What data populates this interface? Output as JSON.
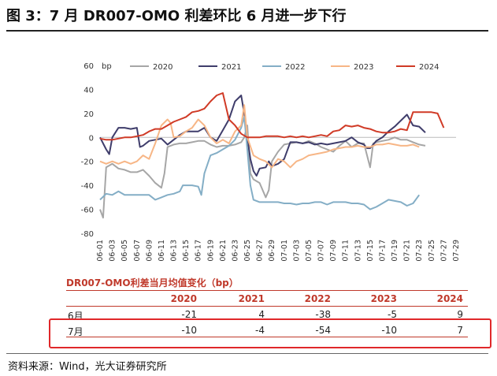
{
  "figure_title": "图 3：7 月 DR007-OMO 利差环比 6 月进一步下行",
  "source": "资料来源：Wind，光大证券研究所",
  "chart_data": {
    "type": "line",
    "title": "",
    "unit_label": "bp",
    "ylim": [
      -80,
      60
    ],
    "yticks": [
      60,
      40,
      20,
      0,
      -20,
      -40,
      -60,
      -80
    ],
    "ytick_labels": [
      "60",
      "40",
      "20",
      "0",
      "-20",
      "-40",
      "-60",
      "-80"
    ],
    "xticks": [
      "06-01",
      "06-03",
      "06-05",
      "06-07",
      "06-09",
      "06-11",
      "06-13",
      "06-15",
      "06-17",
      "06-19",
      "06-21",
      "06-23",
      "06-25",
      "06-27",
      "06-29",
      "07-01",
      "07-03",
      "07-05",
      "07-07",
      "07-09",
      "07-11",
      "07-13",
      "07-15",
      "07-17",
      "07-19",
      "07-21",
      "07-23",
      "07-25",
      "07-27",
      "07-29"
    ],
    "legend_position": "top",
    "series": [
      {
        "name": "2020",
        "color": "#a6a6a6",
        "points": [
          [
            0,
            -60
          ],
          [
            0.5,
            -67
          ],
          [
            1,
            -25
          ],
          [
            2,
            -22
          ],
          [
            3,
            -26
          ],
          [
            4,
            -27
          ],
          [
            5,
            -29
          ],
          [
            6,
            -29
          ],
          [
            7,
            -27
          ],
          [
            8,
            -32
          ],
          [
            9,
            -38
          ],
          [
            10,
            -42
          ],
          [
            10.5,
            -30
          ],
          [
            11,
            -8
          ],
          [
            12,
            -6
          ],
          [
            13,
            -5
          ],
          [
            14,
            -5
          ],
          [
            15,
            -4
          ],
          [
            16,
            -3
          ],
          [
            17,
            -3
          ],
          [
            18,
            -6
          ],
          [
            19,
            -8
          ],
          [
            20,
            -7
          ],
          [
            21,
            -7
          ],
          [
            22,
            -6
          ],
          [
            23,
            -4
          ],
          [
            23.5,
            0
          ],
          [
            24,
            10
          ],
          [
            24.5,
            -30
          ],
          [
            25,
            -35
          ],
          [
            26,
            -38
          ],
          [
            27,
            -50
          ],
          [
            27.5,
            -44
          ],
          [
            28,
            -20
          ],
          [
            29,
            -12
          ],
          [
            30,
            -6
          ],
          [
            31,
            -5
          ],
          [
            32,
            -4
          ],
          [
            33,
            -5
          ],
          [
            34,
            -3
          ],
          [
            35,
            -5
          ],
          [
            36,
            -8
          ],
          [
            37,
            -10
          ],
          [
            38,
            -12
          ],
          [
            39,
            -7
          ],
          [
            40,
            -3
          ],
          [
            41,
            -8
          ],
          [
            42,
            -5
          ],
          [
            43,
            -5
          ],
          [
            43.5,
            -15
          ],
          [
            44,
            -25
          ],
          [
            44.5,
            -5
          ],
          [
            45,
            -4
          ],
          [
            46,
            -3
          ],
          [
            47,
            -2
          ],
          [
            48,
            0
          ],
          [
            49,
            -2
          ],
          [
            50,
            -2
          ],
          [
            51,
            -4
          ],
          [
            52,
            -6
          ],
          [
            53,
            -7
          ]
        ]
      },
      {
        "name": "2021",
        "color": "#3f3d6b",
        "points": [
          [
            0,
            0
          ],
          [
            1,
            -10
          ],
          [
            1.5,
            -14
          ],
          [
            2,
            0
          ],
          [
            3,
            8
          ],
          [
            4,
            8
          ],
          [
            5,
            7
          ],
          [
            6,
            8
          ],
          [
            6.5,
            -8
          ],
          [
            7,
            -7
          ],
          [
            8,
            -3
          ],
          [
            9,
            -2
          ],
          [
            10,
            -1
          ],
          [
            11,
            -6
          ],
          [
            12,
            -2
          ],
          [
            13,
            2
          ],
          [
            14,
            5
          ],
          [
            15,
            5
          ],
          [
            16,
            5
          ],
          [
            17,
            8
          ],
          [
            18,
            0
          ],
          [
            19,
            -3
          ],
          [
            20,
            6
          ],
          [
            21,
            15
          ],
          [
            22,
            30
          ],
          [
            23,
            35
          ],
          [
            23.5,
            20
          ],
          [
            24,
            0
          ],
          [
            24.5,
            -18
          ],
          [
            25,
            -28
          ],
          [
            25.5,
            -32
          ],
          [
            26,
            -26
          ],
          [
            27,
            -25
          ],
          [
            27.5,
            -20
          ],
          [
            28,
            -24
          ],
          [
            29,
            -22
          ],
          [
            30,
            -18
          ],
          [
            31,
            -4
          ],
          [
            32,
            -4
          ],
          [
            33,
            -5
          ],
          [
            34,
            -4
          ],
          [
            35,
            -6
          ],
          [
            36,
            -5
          ],
          [
            37,
            -6
          ],
          [
            38,
            -5
          ],
          [
            39,
            -4
          ],
          [
            40,
            -3
          ],
          [
            41,
            0
          ],
          [
            42,
            -4
          ],
          [
            43,
            -6
          ],
          [
            43.5,
            -9
          ],
          [
            44,
            -9
          ],
          [
            45,
            -3
          ],
          [
            46,
            0
          ],
          [
            47,
            5
          ],
          [
            48,
            9
          ],
          [
            49,
            14
          ],
          [
            50,
            19
          ],
          [
            51,
            10
          ],
          [
            52,
            9
          ],
          [
            53,
            4
          ]
        ]
      },
      {
        "name": "2022",
        "color": "#84aec6",
        "points": [
          [
            0,
            -52
          ],
          [
            1,
            -47
          ],
          [
            2,
            -48
          ],
          [
            3,
            -45
          ],
          [
            4,
            -48
          ],
          [
            5,
            -48
          ],
          [
            6,
            -48
          ],
          [
            7,
            -48
          ],
          [
            8,
            -48
          ],
          [
            9,
            -52
          ],
          [
            10,
            -50
          ],
          [
            11,
            -48
          ],
          [
            12,
            -47
          ],
          [
            13,
            -45
          ],
          [
            13.5,
            -40
          ],
          [
            14,
            -40
          ],
          [
            15,
            -40
          ],
          [
            16,
            -41
          ],
          [
            16.5,
            -48
          ],
          [
            17,
            -30
          ],
          [
            18,
            -15
          ],
          [
            19,
            -13
          ],
          [
            20,
            -10
          ],
          [
            21,
            -7
          ],
          [
            22,
            -2
          ],
          [
            23,
            8
          ],
          [
            23.5,
            17
          ],
          [
            24,
            -10
          ],
          [
            24.5,
            -40
          ],
          [
            25,
            -52
          ],
          [
            26,
            -54
          ],
          [
            27,
            -54
          ],
          [
            28,
            -54
          ],
          [
            29,
            -54
          ],
          [
            30,
            -55
          ],
          [
            31,
            -55
          ],
          [
            32,
            -56
          ],
          [
            33,
            -55
          ],
          [
            34,
            -55
          ],
          [
            35,
            -54
          ],
          [
            36,
            -54
          ],
          [
            37,
            -56
          ],
          [
            38,
            -54
          ],
          [
            39,
            -54
          ],
          [
            40,
            -54
          ],
          [
            41,
            -55
          ],
          [
            42,
            -55
          ],
          [
            43,
            -56
          ],
          [
            44,
            -60
          ],
          [
            45,
            -58
          ],
          [
            46,
            -55
          ],
          [
            47,
            -52
          ],
          [
            48,
            -53
          ],
          [
            49,
            -54
          ],
          [
            50,
            -57
          ],
          [
            51,
            -55
          ],
          [
            52,
            -48
          ]
        ]
      },
      {
        "name": "2023",
        "color": "#f7b686",
        "points": [
          [
            0,
            -20
          ],
          [
            1,
            -22
          ],
          [
            2,
            -20
          ],
          [
            3,
            -22
          ],
          [
            4,
            -20
          ],
          [
            5,
            -22
          ],
          [
            6,
            -20
          ],
          [
            7,
            -15
          ],
          [
            8,
            -18
          ],
          [
            9,
            -5
          ],
          [
            10,
            10
          ],
          [
            11,
            15
          ],
          [
            11.5,
            12
          ],
          [
            12,
            0
          ],
          [
            13,
            1
          ],
          [
            14,
            5
          ],
          [
            15,
            8
          ],
          [
            16,
            15
          ],
          [
            17,
            10
          ],
          [
            18,
            0
          ],
          [
            19,
            -5
          ],
          [
            20,
            -2
          ],
          [
            21,
            -5
          ],
          [
            22,
            5
          ],
          [
            23,
            10
          ],
          [
            23.5,
            27
          ],
          [
            24,
            0
          ],
          [
            25,
            -15
          ],
          [
            26,
            -18
          ],
          [
            27,
            -20
          ],
          [
            28,
            -25
          ],
          [
            29,
            -18
          ],
          [
            30,
            -20
          ],
          [
            31,
            -25
          ],
          [
            32,
            -20
          ],
          [
            33,
            -18
          ],
          [
            34,
            -15
          ],
          [
            35,
            -14
          ],
          [
            36,
            -13
          ],
          [
            37,
            -12
          ],
          [
            38,
            -10
          ],
          [
            39,
            -9
          ],
          [
            40,
            -8
          ],
          [
            41,
            -8
          ],
          [
            42,
            -7
          ],
          [
            43,
            -8
          ],
          [
            44,
            -8
          ],
          [
            45,
            -6
          ],
          [
            46,
            -6
          ],
          [
            47,
            -5
          ],
          [
            48,
            -6
          ],
          [
            49,
            -7
          ],
          [
            50,
            -7
          ],
          [
            51,
            -6
          ],
          [
            52,
            -8
          ]
        ]
      },
      {
        "name": "2024",
        "color": "#d03a26",
        "points": [
          [
            0,
            -1
          ],
          [
            1,
            -2
          ],
          [
            2,
            -2
          ],
          [
            3,
            -1
          ],
          [
            4,
            0
          ],
          [
            5,
            0
          ],
          [
            6,
            1
          ],
          [
            7,
            2
          ],
          [
            8,
            5
          ],
          [
            9,
            7
          ],
          [
            10,
            7
          ],
          [
            11,
            10
          ],
          [
            12,
            13
          ],
          [
            13,
            15
          ],
          [
            14,
            17
          ],
          [
            15,
            21
          ],
          [
            16,
            22
          ],
          [
            17,
            24
          ],
          [
            18,
            30
          ],
          [
            19,
            35
          ],
          [
            20,
            37
          ],
          [
            21,
            15
          ],
          [
            22,
            10
          ],
          [
            23,
            3
          ],
          [
            24,
            0
          ],
          [
            25,
            0
          ],
          [
            26,
            0
          ],
          [
            27,
            1
          ],
          [
            28,
            1
          ],
          [
            29,
            1
          ],
          [
            30,
            0
          ],
          [
            31,
            1
          ],
          [
            32,
            0
          ],
          [
            33,
            1
          ],
          [
            34,
            0
          ],
          [
            35,
            1
          ],
          [
            36,
            2
          ],
          [
            37,
            1
          ],
          [
            38,
            5
          ],
          [
            39,
            6
          ],
          [
            40,
            10
          ],
          [
            41,
            9
          ],
          [
            42,
            10
          ],
          [
            43,
            8
          ],
          [
            44,
            7
          ],
          [
            45,
            5
          ],
          [
            46,
            4
          ],
          [
            47,
            4
          ],
          [
            48,
            5
          ],
          [
            49,
            7
          ],
          [
            50,
            6
          ],
          [
            51,
            21
          ],
          [
            52,
            21
          ],
          [
            53,
            21
          ],
          [
            54,
            21
          ],
          [
            55,
            20
          ],
          [
            56,
            8
          ]
        ]
      }
    ],
    "table": {
      "title": "DR007-OMO利差当月均值变化（bp）",
      "columns": [
        "",
        "2020",
        "2021",
        "2022",
        "2023",
        "2024"
      ],
      "rows": [
        {
          "label": "6月",
          "values": [
            "-21",
            "4",
            "-38",
            "-5",
            "9"
          ]
        },
        {
          "label": "7月",
          "values": [
            "-10",
            "-4",
            "-54",
            "-10",
            "7"
          ]
        }
      ]
    }
  }
}
